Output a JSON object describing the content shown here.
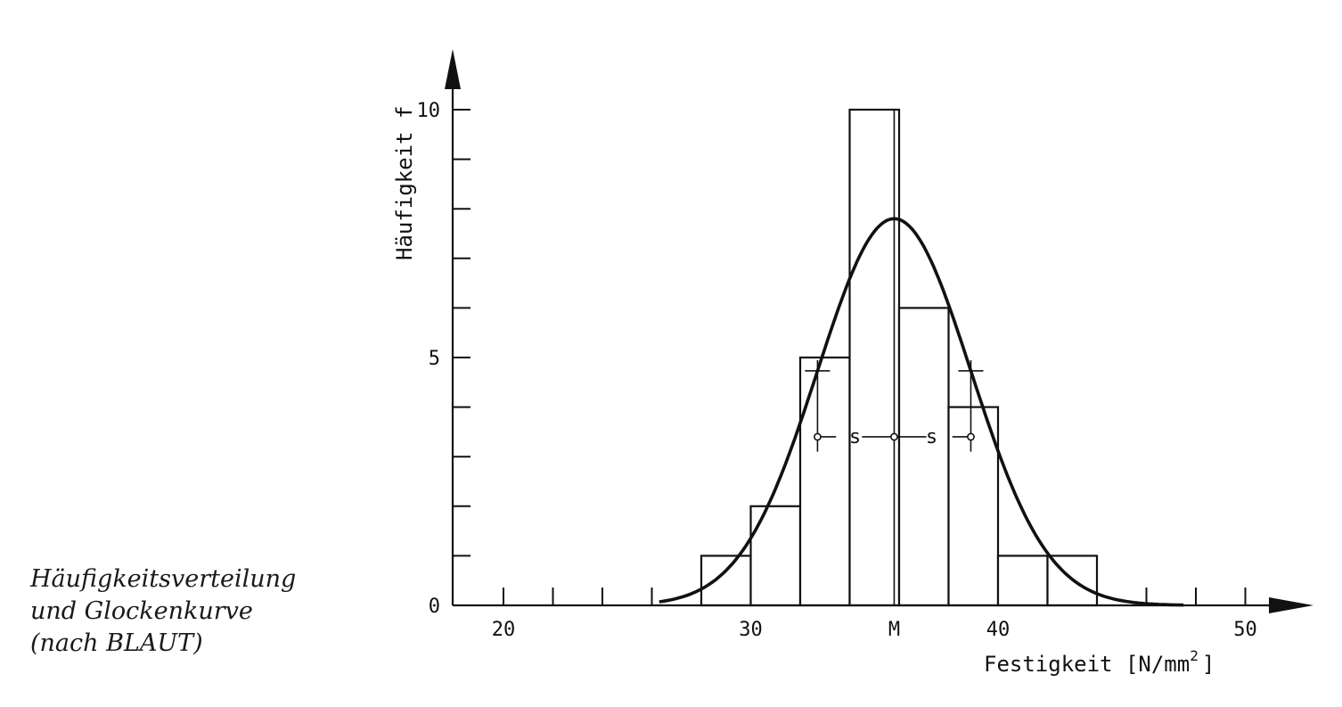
{
  "chart_data": {
    "type": "bar",
    "subtype": "histogram with fitted normal curve",
    "xlabel": "Festigkeit [N/mm",
    "xlabel_sup": "2",
    "xlabel_close": "]",
    "ylabel": "Häufigkeit f",
    "xlim": [
      18,
      52
    ],
    "ylim": [
      0,
      10
    ],
    "x_ticks": [
      20,
      30,
      40,
      50
    ],
    "x_tick_labels": [
      "20",
      "30",
      "40",
      "50"
    ],
    "x_minor_ticks": [
      22,
      24,
      26,
      28,
      32,
      38,
      42,
      44,
      46,
      48
    ],
    "y_ticks": [
      0,
      5,
      10
    ],
    "y_tick_labels": [
      "0",
      "5",
      "10"
    ],
    "y_minor_ticks": [
      1,
      2,
      3,
      4,
      6,
      7,
      8,
      9
    ],
    "bins": [
      {
        "x0": 28,
        "x1": 30,
        "value": 1
      },
      {
        "x0": 30,
        "x1": 32,
        "value": 2
      },
      {
        "x0": 32,
        "x1": 34,
        "value": 5
      },
      {
        "x0": 34,
        "x1": 36,
        "value": 10
      },
      {
        "x0": 36,
        "x1": 38,
        "value": 6
      },
      {
        "x0": 38,
        "x1": 40,
        "value": 4
      },
      {
        "x0": 40,
        "x1": 42,
        "value": 1
      },
      {
        "x0": 42,
        "x1": 44,
        "value": 1
      }
    ],
    "curve": {
      "mean": 35.8,
      "sd": 3.1,
      "peak": 7.8
    },
    "mean_label": "M",
    "mean_value": 35.8,
    "sd_label": "s",
    "sd_marker_level": 3.4,
    "grid": false
  },
  "caption": {
    "lines": [
      "Häufigkeitsverteilung",
      "und Glockenkurve",
      "(nach BLAUT)"
    ]
  }
}
